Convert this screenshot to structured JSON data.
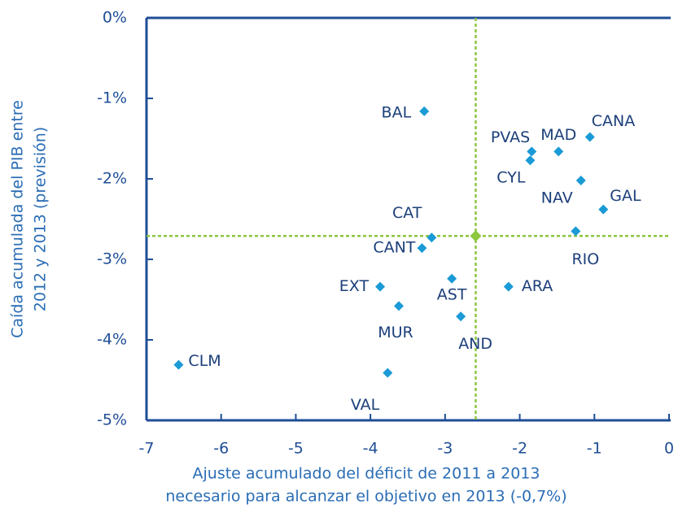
{
  "chart_data": {
    "type": "scatter",
    "ylabel": [
      "Caída acumulada del PIB entre",
      "2012 y 2013  (previsión)"
    ],
    "xlabel": [
      "Ajuste acumulado del déficit de 2011 a 2013",
      "necesario para alcanzar el objetivo en 2013 (-0,7%)"
    ],
    "labels": [
      "BAL",
      "PVAS",
      "CYL",
      "MAD",
      "CANA",
      "NAV",
      "GAL",
      "RIO",
      "CAT",
      "CANT",
      "AST",
      "ARA",
      "EXT",
      "MUR",
      "AND",
      "VAL",
      "CLM"
    ],
    "x": [
      -3.28,
      -1.84,
      -1.86,
      -1.48,
      -1.06,
      -1.18,
      -0.88,
      -1.25,
      -3.18,
      -3.31,
      -2.91,
      -2.15,
      -3.87,
      -3.62,
      -2.79,
      -3.77,
      -6.57
    ],
    "y": [
      -1.16,
      -1.66,
      -1.77,
      -1.66,
      -1.48,
      -2.02,
      -2.38,
      -2.65,
      -2.73,
      -2.86,
      -3.24,
      -3.34,
      -3.34,
      -3.58,
      -3.71,
      -4.41,
      -4.31
    ],
    "color": "#1a9ad6",
    "mean_point": {
      "x": -2.59,
      "y": -2.71,
      "color": "#8dc63f"
    },
    "xlim": [
      -7,
      0
    ],
    "xticks": [
      -7,
      -6,
      -5,
      -4,
      -3,
      -2,
      -1,
      0
    ],
    "ylim": [
      -5,
      0
    ],
    "yticks": [
      {
        "value": 0,
        "label": "0%"
      },
      {
        "value": -1,
        "label": "-1%"
      },
      {
        "value": -2,
        "label": "-2%"
      },
      {
        "value": -3,
        "label": "-3%"
      },
      {
        "value": -4,
        "label": "-4%"
      },
      {
        "value": -5,
        "label": "-5%"
      }
    ]
  }
}
